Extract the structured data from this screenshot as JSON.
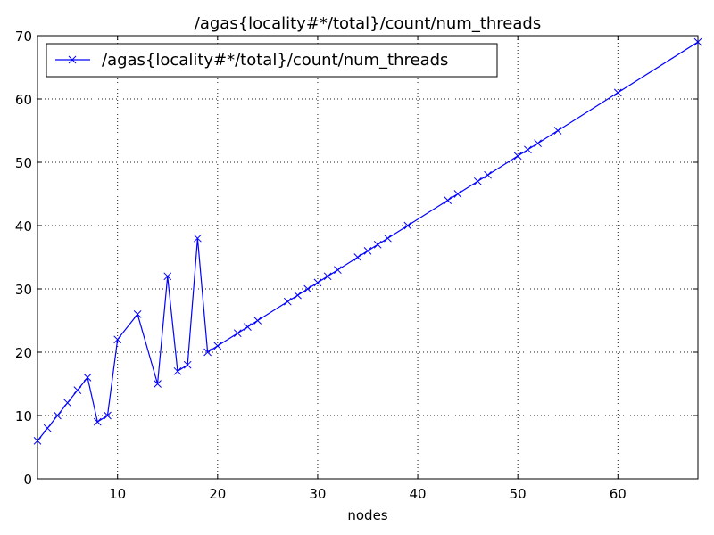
{
  "chart_data": {
    "type": "line",
    "title": "/agas{locality#*/total}/count/num_threads",
    "xlabel": "nodes",
    "ylabel": "",
    "xlim": [
      2,
      68
    ],
    "ylim": [
      0,
      70
    ],
    "x_ticks": [
      10,
      20,
      30,
      40,
      50,
      60
    ],
    "y_ticks": [
      0,
      10,
      20,
      30,
      40,
      50,
      60,
      70
    ],
    "grid": true,
    "legend_position": "top-left",
    "series": [
      {
        "name": "/agas{locality#*/total}/count/num_threads",
        "color": "#0000ff",
        "marker": "x",
        "points": [
          [
            2,
            6
          ],
          [
            3,
            8
          ],
          [
            4,
            10
          ],
          [
            5,
            12
          ],
          [
            6,
            14
          ],
          [
            7,
            16
          ],
          [
            8,
            9
          ],
          [
            9,
            10
          ],
          [
            10,
            22
          ],
          [
            12,
            26
          ],
          [
            14,
            15
          ],
          [
            15,
            32
          ],
          [
            16,
            17
          ],
          [
            17,
            18
          ],
          [
            18,
            38
          ],
          [
            19,
            20
          ],
          [
            20,
            21
          ],
          [
            22,
            23
          ],
          [
            23,
            24
          ],
          [
            24,
            25
          ],
          [
            27,
            28
          ],
          [
            28,
            29
          ],
          [
            29,
            30
          ],
          [
            30,
            31
          ],
          [
            31,
            32
          ],
          [
            32,
            33
          ],
          [
            34,
            35
          ],
          [
            35,
            36
          ],
          [
            36,
            37
          ],
          [
            37,
            38
          ],
          [
            39,
            40
          ],
          [
            43,
            44
          ],
          [
            44,
            45
          ],
          [
            46,
            47
          ],
          [
            47,
            48
          ],
          [
            50,
            51
          ],
          [
            51,
            52
          ],
          [
            52,
            53
          ],
          [
            54,
            55
          ],
          [
            60,
            61
          ],
          [
            68,
            69
          ]
        ]
      }
    ]
  }
}
